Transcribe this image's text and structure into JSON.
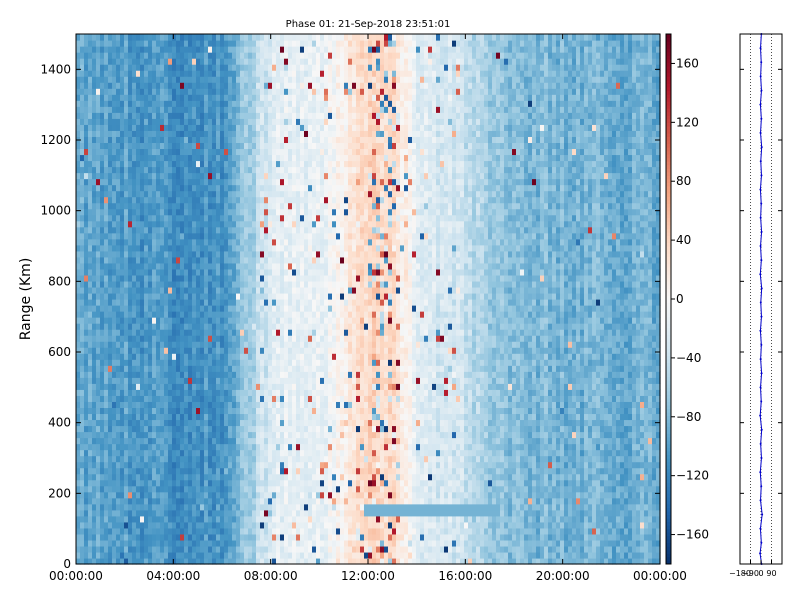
{
  "chart_data": [
    {
      "type": "heatmap",
      "title": "Phase 01: 21-Sep-2018 23:51:01",
      "ylabel": "Range (Km)",
      "xlabel": "",
      "x_tick_labels": [
        "00:00:00",
        "04:00:00",
        "08:00:00",
        "12:00:00",
        "16:00:00",
        "20:00:00",
        "00:00:00"
      ],
      "x_tick_hours": [
        0,
        4,
        8,
        12,
        16,
        20,
        24
      ],
      "xlim_hours": [
        0,
        24
      ],
      "ylim": [
        0,
        1500
      ],
      "y_ticks": [
        0,
        200,
        400,
        600,
        800,
        1000,
        1200,
        1400
      ],
      "colormap": "RdBu_r",
      "colorbar": {
        "vmin": -180,
        "vmax": 180,
        "ticks": [
          -160,
          -120,
          -80,
          -40,
          0,
          40,
          80,
          120,
          160
        ],
        "colors_low_to_high": [
          "#08306b",
          "#2166ac",
          "#4393c3",
          "#92c5de",
          "#d1e5f0",
          "#f7f7f7",
          "#fddbc7",
          "#f4a582",
          "#d6604d",
          "#b2182b",
          "#67001f"
        ]
      },
      "phase_profile_by_hour": [
        {
          "hour": 0,
          "mean_phase": -95
        },
        {
          "hour": 2,
          "mean_phase": -100
        },
        {
          "hour": 4,
          "mean_phase": -110
        },
        {
          "hour": 6,
          "mean_phase": -105
        },
        {
          "hour": 7.3,
          "mean_phase": -60
        },
        {
          "hour": 8,
          "mean_phase": -20
        },
        {
          "hour": 10,
          "mean_phase": -15
        },
        {
          "hour": 12,
          "mean_phase": 40
        },
        {
          "hour": 13,
          "mean_phase": 30
        },
        {
          "hour": 14,
          "mean_phase": -15
        },
        {
          "hour": 16,
          "mean_phase": -40
        },
        {
          "hour": 17,
          "mean_phase": -70
        },
        {
          "hour": 20,
          "mean_phase": -85
        },
        {
          "hour": 24,
          "mean_phase": -90
        }
      ],
      "band_feature": {
        "start_hour": 11.8,
        "end_hour": 17.5,
        "range_km": 150,
        "phase": -85
      }
    },
    {
      "type": "line",
      "x_tick_labels": [
        "−180",
        "−90",
        "0",
        "90"
      ],
      "xlim": [
        -180,
        180
      ],
      "ylim": [
        0,
        1500
      ],
      "grid": "vertical dotted",
      "series_color": "#0000cc",
      "points": [
        [
          5,
          0
        ],
        [
          -8,
          30
        ],
        [
          3,
          60
        ],
        [
          -5,
          100
        ],
        [
          10,
          140
        ],
        [
          -4,
          180
        ],
        [
          2,
          220
        ],
        [
          -6,
          260
        ],
        [
          4,
          300
        ],
        [
          -3,
          340
        ],
        [
          6,
          380
        ],
        [
          -7,
          420
        ],
        [
          2,
          460
        ],
        [
          -4,
          500
        ],
        [
          5,
          540
        ],
        [
          -3,
          580
        ],
        [
          3,
          620
        ],
        [
          -5,
          660
        ],
        [
          4,
          700
        ],
        [
          -2,
          740
        ],
        [
          6,
          780
        ],
        [
          -6,
          820
        ],
        [
          3,
          860
        ],
        [
          -4,
          900
        ],
        [
          5,
          940
        ],
        [
          -3,
          980
        ],
        [
          2,
          1020
        ],
        [
          -5,
          1060
        ],
        [
          4,
          1100
        ],
        [
          -2,
          1140
        ],
        [
          6,
          1180
        ],
        [
          -4,
          1220
        ],
        [
          3,
          1260
        ],
        [
          -5,
          1300
        ],
        [
          4,
          1340
        ],
        [
          -3,
          1380
        ],
        [
          2,
          1420
        ],
        [
          -4,
          1460
        ],
        [
          3,
          1500
        ]
      ]
    }
  ]
}
